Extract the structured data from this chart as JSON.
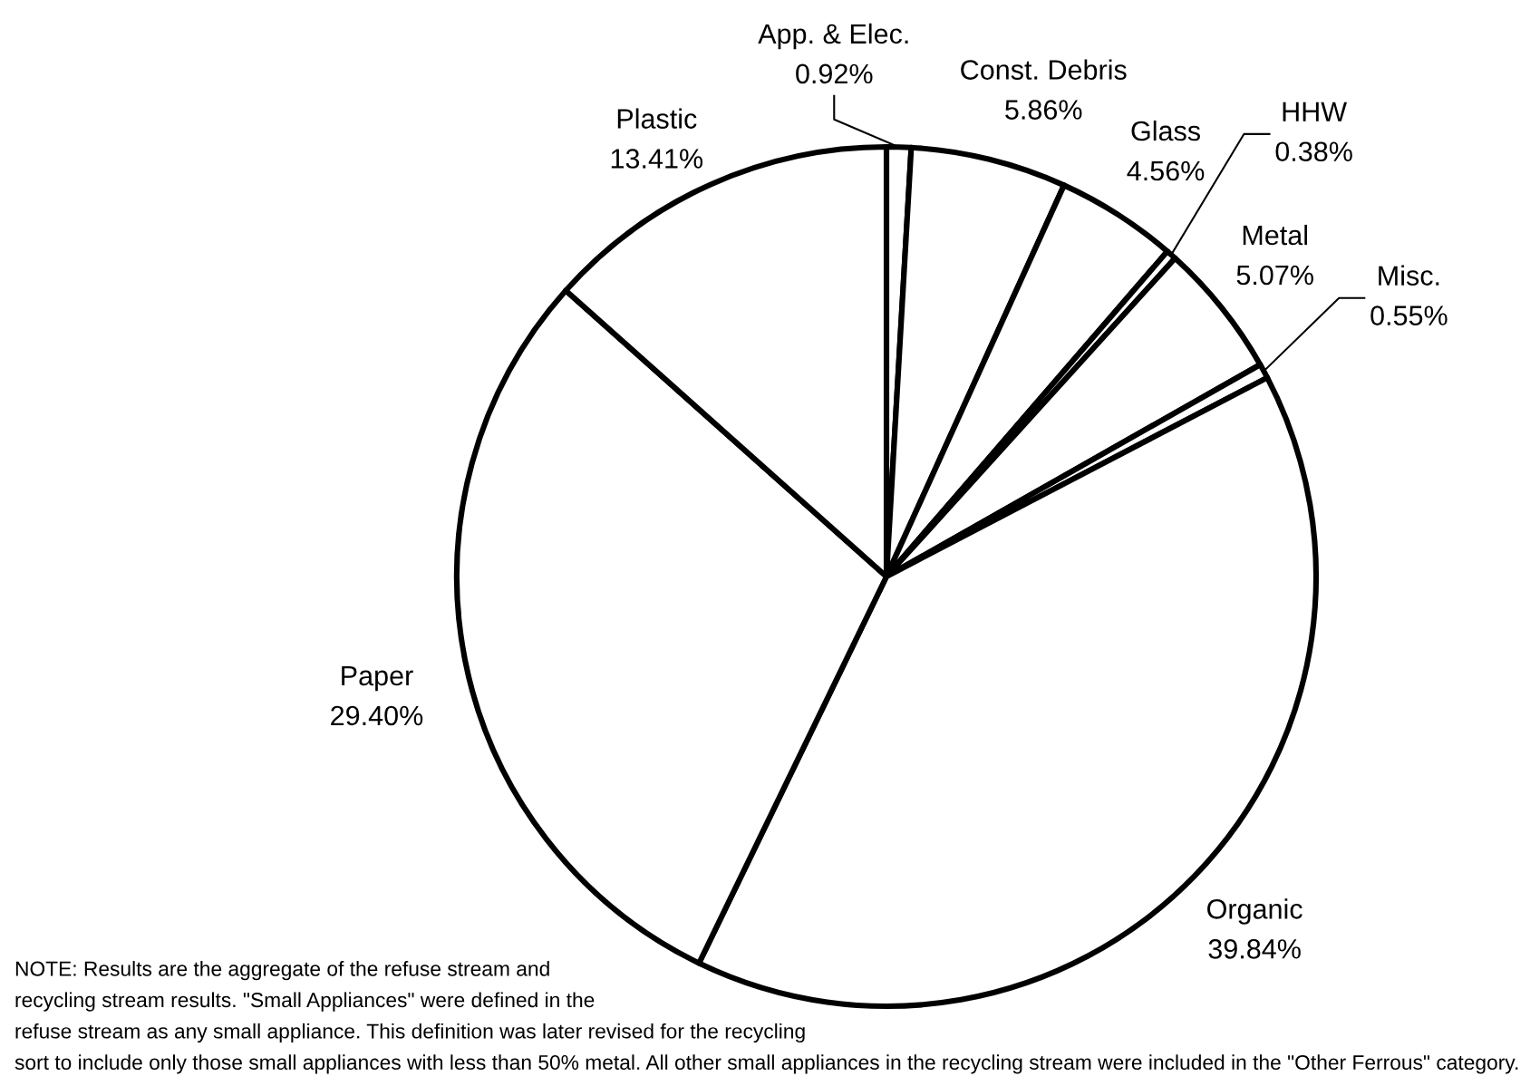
{
  "chart_data": {
    "type": "pie",
    "categories": [
      "App. & Elec.",
      "Const. Debris",
      "Glass",
      "HHW",
      "Metal",
      "Misc.",
      "Organic",
      "Paper",
      "Plastic"
    ],
    "values": [
      0.92,
      5.86,
      4.56,
      0.38,
      5.07,
      0.55,
      39.84,
      29.4,
      13.41
    ],
    "value_labels": [
      "0.92%",
      "5.86%",
      "4.56%",
      "0.38%",
      "5.07%",
      "0.55%",
      "39.84%",
      "29.40%",
      "13.41%"
    ],
    "colors": [
      "#ffffff",
      "#ffffff",
      "#ffffff",
      "#ffffff",
      "#ffffff",
      "#ffffff",
      "#ffffff",
      "#ffffff",
      "#ffffff"
    ],
    "annotations": [
      "NOTE: Results are the aggregate of the refuse stream and\nrecycling stream results. \"Small Appliances\" were defined in the\nrefuse stream as any small appliance. This definition was later revised for the recycling\nsort to include only those small appliances with less than 50% metal. All other small appliances in the recycling stream were included in the \"Other Ferrous\" category."
    ]
  }
}
